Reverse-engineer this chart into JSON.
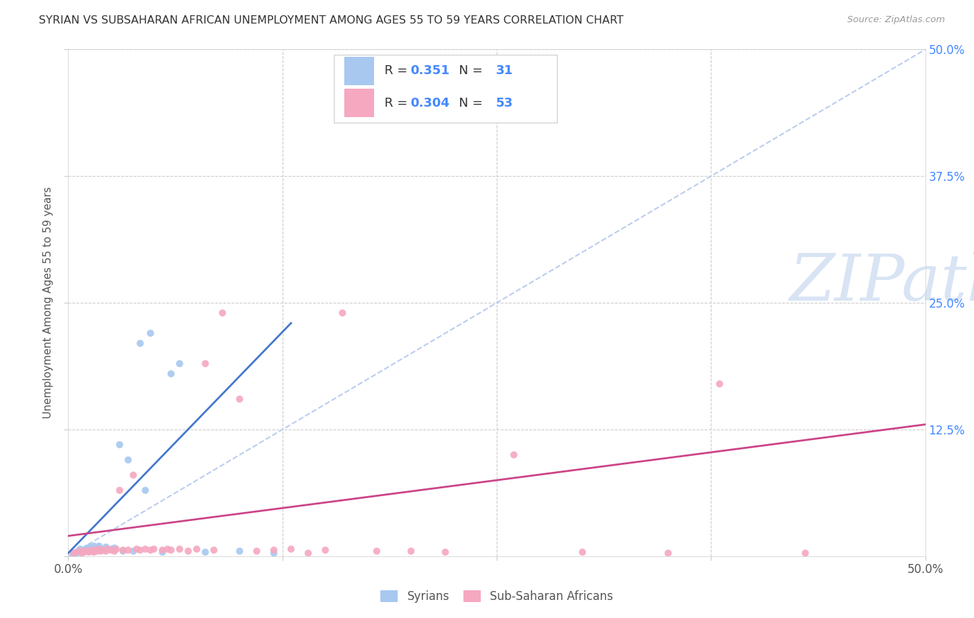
{
  "title": "SYRIAN VS SUBSAHARAN AFRICAN UNEMPLOYMENT AMONG AGES 55 TO 59 YEARS CORRELATION CHART",
  "source": "Source: ZipAtlas.com",
  "ylabel": "Unemployment Among Ages 55 to 59 years",
  "xlim": [
    0,
    0.5
  ],
  "ylim": [
    0,
    0.5
  ],
  "syrian_R": "0.351",
  "syrian_N": "31",
  "subsaharan_R": "0.304",
  "subsaharan_N": "53",
  "syrian_color": "#A8C8F0",
  "subsaharan_color": "#F5A8C0",
  "syrian_line_color": "#4477CC",
  "subsaharan_line_color": "#CC4488",
  "diagonal_color": "#BBCCEE",
  "watermark_color": "#D8E4F4",
  "bg_color": "#FFFFFF",
  "grid_color": "#CCCCCC",
  "right_tick_color": "#4488FF",
  "bottom_tick_color": "#555555",
  "syrian_dots": [
    [
      0.003,
      0.002
    ],
    [
      0.005,
      0.003
    ],
    [
      0.006,
      0.005
    ],
    [
      0.007,
      0.007
    ],
    [
      0.009,
      0.004
    ],
    [
      0.01,
      0.006
    ],
    [
      0.011,
      0.008
    ],
    [
      0.012,
      0.005
    ],
    [
      0.013,
      0.009
    ],
    [
      0.015,
      0.007
    ],
    [
      0.015,
      0.01
    ],
    [
      0.016,
      0.006
    ],
    [
      0.017,
      0.008
    ],
    [
      0.018,
      0.01
    ],
    [
      0.02,
      0.006
    ],
    [
      0.022,
      0.009
    ],
    [
      0.025,
      0.007
    ],
    [
      0.027,
      0.008
    ],
    [
      0.03,
      0.11
    ],
    [
      0.032,
      0.005
    ],
    [
      0.035,
      0.095
    ],
    [
      0.038,
      0.005
    ],
    [
      0.042,
      0.21
    ],
    [
      0.045,
      0.065
    ],
    [
      0.048,
      0.22
    ],
    [
      0.055,
      0.004
    ],
    [
      0.06,
      0.18
    ],
    [
      0.065,
      0.19
    ],
    [
      0.08,
      0.004
    ],
    [
      0.1,
      0.005
    ],
    [
      0.12,
      0.003
    ]
  ],
  "subsaharan_dots": [
    [
      0.003,
      0.003
    ],
    [
      0.005,
      0.004
    ],
    [
      0.007,
      0.005
    ],
    [
      0.008,
      0.003
    ],
    [
      0.009,
      0.004
    ],
    [
      0.01,
      0.005
    ],
    [
      0.012,
      0.004
    ],
    [
      0.013,
      0.006
    ],
    [
      0.014,
      0.005
    ],
    [
      0.015,
      0.004
    ],
    [
      0.016,
      0.006
    ],
    [
      0.017,
      0.005
    ],
    [
      0.018,
      0.007
    ],
    [
      0.019,
      0.005
    ],
    [
      0.02,
      0.006
    ],
    [
      0.022,
      0.005
    ],
    [
      0.023,
      0.007
    ],
    [
      0.025,
      0.006
    ],
    [
      0.027,
      0.005
    ],
    [
      0.028,
      0.007
    ],
    [
      0.03,
      0.065
    ],
    [
      0.032,
      0.006
    ],
    [
      0.035,
      0.006
    ],
    [
      0.038,
      0.08
    ],
    [
      0.04,
      0.007
    ],
    [
      0.042,
      0.006
    ],
    [
      0.045,
      0.007
    ],
    [
      0.048,
      0.006
    ],
    [
      0.05,
      0.007
    ],
    [
      0.055,
      0.006
    ],
    [
      0.058,
      0.007
    ],
    [
      0.06,
      0.006
    ],
    [
      0.065,
      0.007
    ],
    [
      0.07,
      0.005
    ],
    [
      0.075,
      0.007
    ],
    [
      0.08,
      0.19
    ],
    [
      0.085,
      0.006
    ],
    [
      0.09,
      0.24
    ],
    [
      0.1,
      0.155
    ],
    [
      0.11,
      0.005
    ],
    [
      0.12,
      0.006
    ],
    [
      0.13,
      0.007
    ],
    [
      0.14,
      0.003
    ],
    [
      0.15,
      0.006
    ],
    [
      0.16,
      0.24
    ],
    [
      0.18,
      0.005
    ],
    [
      0.2,
      0.005
    ],
    [
      0.22,
      0.004
    ],
    [
      0.26,
      0.1
    ],
    [
      0.3,
      0.004
    ],
    [
      0.35,
      0.003
    ],
    [
      0.38,
      0.17
    ],
    [
      0.43,
      0.003
    ]
  ],
  "syrian_trend_x": [
    0.0,
    0.13
  ],
  "syrian_trend_y": [
    0.003,
    0.23
  ],
  "subsaharan_trend_x": [
    0.0,
    0.5
  ],
  "subsaharan_trend_y": [
    0.02,
    0.13
  ]
}
